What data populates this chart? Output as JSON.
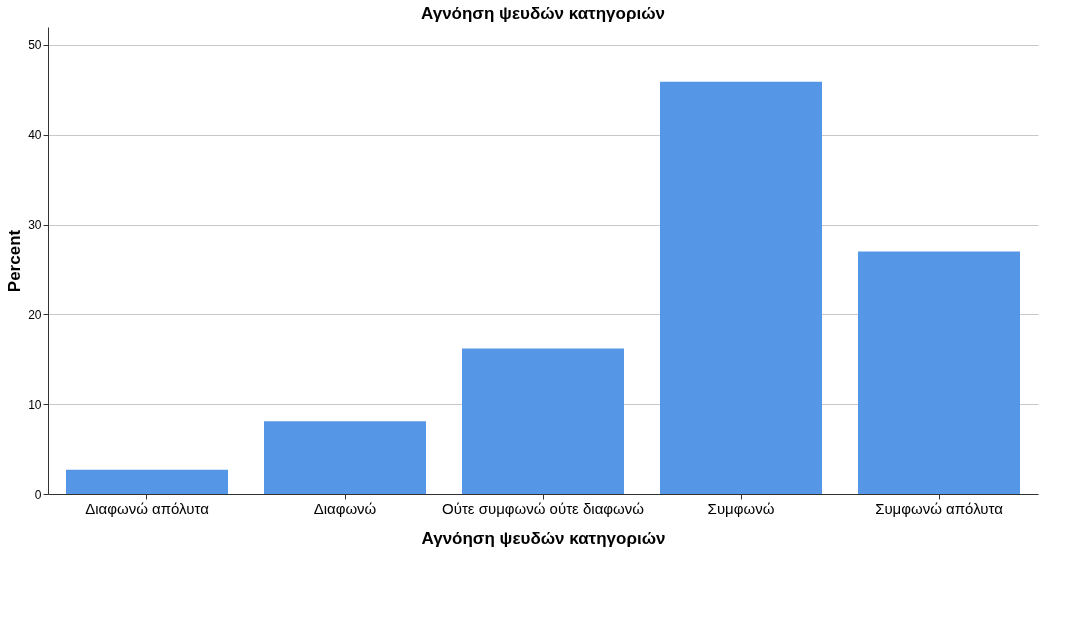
{
  "chart_data": {
    "type": "bar",
    "title": "Αγνόηση ψευδών κατηγοριών",
    "xlabel": "Αγνόηση ψευδών κατηγοριών",
    "ylabel": "Percent",
    "categories": [
      "Διαφωνώ απόλυτα",
      "Διαφωνώ",
      "Ούτε συμφωνώ ούτε διαφωνώ",
      "Συμφωνώ",
      "Συμφωνώ απόλυτα"
    ],
    "values": [
      2.7,
      8.1,
      16.2,
      45.9,
      27.0
    ],
    "color": "#5596e6",
    "ylim": [
      0,
      52
    ],
    "yticks": [
      0,
      10,
      20,
      30,
      40,
      50
    ],
    "grid": "y"
  }
}
